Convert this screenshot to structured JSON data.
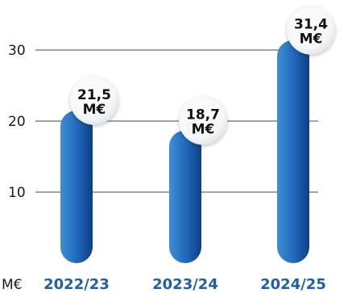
{
  "chart_data": {
    "type": "bar",
    "categories": [
      "2022/23",
      "2023/24",
      "2024/25"
    ],
    "values": [
      21.5,
      18.7,
      31.4
    ],
    "value_labels": [
      [
        "21,5",
        "M€"
      ],
      [
        "18,7",
        "M€"
      ],
      [
        "31,4",
        "M€"
      ]
    ],
    "unit_label": "M€",
    "yticks": [
      10,
      20,
      30
    ],
    "ylim": [
      0,
      32
    ],
    "grid": true,
    "colors": {
      "bar_light": "#3e8fd6",
      "bar_dark": "#0d3f86",
      "grid": "#9aa5b0",
      "category_text": "#1f5fa8"
    }
  }
}
